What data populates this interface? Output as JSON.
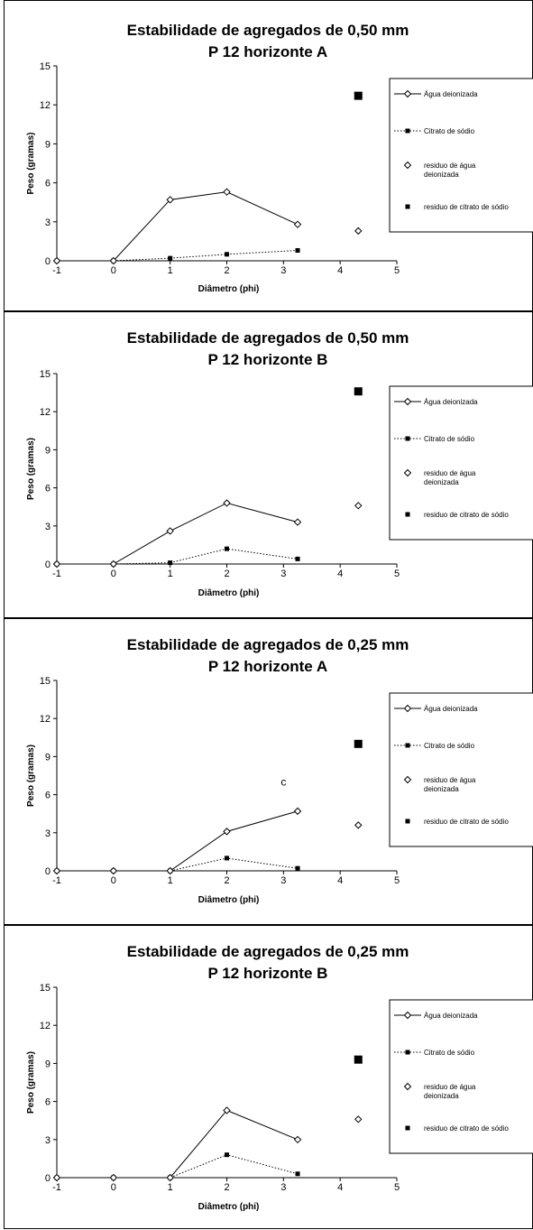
{
  "chart_data": [
    {
      "type": "line",
      "title": "Estabilidade de agregados de 0,50 mm",
      "subtitle": "P 12 horizonte A",
      "xlabel": "Diâmetro (phi)",
      "ylabel": "Peso (gramas)",
      "xlim": [
        -1,
        5
      ],
      "ylim": [
        0,
        15
      ],
      "xticks": [
        "-1",
        "0",
        "1",
        "2",
        "3",
        "4",
        "5"
      ],
      "yticks": [
        "0",
        "3",
        "6",
        "9",
        "12",
        "15"
      ],
      "grid": false,
      "legend_position": "right",
      "series": [
        {
          "name": "Água deionizada",
          "style": "solid-diamond",
          "points": [
            [
              -1,
              0
            ],
            [
              0,
              0
            ],
            [
              1,
              4.7
            ],
            [
              2,
              5.3
            ],
            [
              3.25,
              2.8
            ]
          ]
        },
        {
          "name": "Citrato de sódio",
          "style": "dotted-square",
          "points": [
            [
              -1,
              0
            ],
            [
              0,
              0
            ],
            [
              1,
              0.2
            ],
            [
              2,
              0.5
            ],
            [
              3.25,
              0.8
            ]
          ]
        },
        {
          "name": "residuo de água deionizada",
          "style": "diamond",
          "points": [
            [
              4.32,
              2.3
            ]
          ]
        },
        {
          "name": "residuo de citrato de sódio",
          "style": "square",
          "points": [
            [
              4.32,
              12.7
            ]
          ]
        }
      ],
      "annotations": []
    },
    {
      "type": "line",
      "title": "Estabilidade de agregados de 0,50 mm",
      "subtitle": "P 12 horizonte B",
      "xlabel": "Diâmetro (phi)",
      "ylabel": "Peso (gramas)",
      "xlim": [
        -1,
        5
      ],
      "ylim": [
        0,
        15
      ],
      "xticks": [
        "-1",
        "0",
        "1",
        "2",
        "3",
        "4",
        "5"
      ],
      "yticks": [
        "0",
        "3",
        "6",
        "9",
        "12",
        "15"
      ],
      "grid": false,
      "legend_position": "right",
      "series": [
        {
          "name": "Água deionizada",
          "style": "solid-diamond",
          "points": [
            [
              -1,
              0
            ],
            [
              0,
              0
            ],
            [
              1,
              2.6
            ],
            [
              2,
              4.8
            ],
            [
              3.25,
              3.3
            ]
          ]
        },
        {
          "name": "Citrato de sódio",
          "style": "dotted-square",
          "points": [
            [
              -1,
              0
            ],
            [
              0,
              0
            ],
            [
              1,
              0.1
            ],
            [
              2,
              1.2
            ],
            [
              3.25,
              0.4
            ]
          ]
        },
        {
          "name": "residuo de água deionizada",
          "style": "diamond",
          "points": [
            [
              4.32,
              4.6
            ]
          ]
        },
        {
          "name": "residuo de citrato de sódio",
          "style": "square",
          "points": [
            [
              4.32,
              13.6
            ]
          ]
        }
      ],
      "annotations": []
    },
    {
      "type": "line",
      "title": "Estabilidade de agregados de 0,25 mm",
      "subtitle": "P 12 horizonte A",
      "xlabel": "Diâmetro (phi)",
      "ylabel": "Peso (gramas)",
      "xlim": [
        -1,
        5
      ],
      "ylim": [
        0,
        15
      ],
      "xticks": [
        "-1",
        "0",
        "1",
        "2",
        "3",
        "4",
        "5"
      ],
      "yticks": [
        "0",
        "3",
        "6",
        "9",
        "12",
        "15"
      ],
      "grid": false,
      "legend_position": "right",
      "series": [
        {
          "name": "Água deionizada",
          "style": "solid-diamond",
          "points": [
            [
              -1,
              0
            ],
            [
              0,
              0
            ],
            [
              1,
              0
            ],
            [
              2,
              3.1
            ],
            [
              3.25,
              4.7
            ]
          ]
        },
        {
          "name": "Citrato de sódio",
          "style": "dotted-square",
          "points": [
            [
              -1,
              0
            ],
            [
              0,
              0
            ],
            [
              1,
              0
            ],
            [
              2,
              1.0
            ],
            [
              3.25,
              0.2
            ]
          ]
        },
        {
          "name": "residuo de água deionizada",
          "style": "diamond",
          "points": [
            [
              4.32,
              3.6
            ]
          ]
        },
        {
          "name": "residuo de citrato de sódio",
          "style": "square",
          "points": [
            [
              4.32,
              10.0
            ]
          ]
        }
      ],
      "annotations": [
        {
          "text": "c",
          "x": 3.0,
          "y": 7.0
        }
      ]
    },
    {
      "type": "line",
      "title": "Estabilidade de agregados de 0,25 mm",
      "subtitle": "P 12 horizonte B",
      "xlabel": "Diâmetro (phi)",
      "ylabel": "Peso (gramas)",
      "xlim": [
        -1,
        5
      ],
      "ylim": [
        0,
        15
      ],
      "xticks": [
        "-1",
        "0",
        "1",
        "2",
        "3",
        "4",
        "5"
      ],
      "yticks": [
        "0",
        "3",
        "6",
        "9",
        "12",
        "15"
      ],
      "grid": false,
      "legend_position": "right",
      "series": [
        {
          "name": "Água deionizada",
          "style": "solid-diamond",
          "points": [
            [
              -1,
              0
            ],
            [
              0,
              0
            ],
            [
              1,
              0
            ],
            [
              2,
              5.3
            ],
            [
              3.25,
              3.0
            ]
          ]
        },
        {
          "name": "Citrato de sódio",
          "style": "dotted-square",
          "points": [
            [
              -1,
              0
            ],
            [
              0,
              0
            ],
            [
              1,
              0
            ],
            [
              2,
              1.8
            ],
            [
              3.25,
              0.3
            ]
          ]
        },
        {
          "name": "residuo de água deionizada",
          "style": "diamond",
          "points": [
            [
              4.32,
              4.6
            ]
          ]
        },
        {
          "name": "residuo de citrato de sódio",
          "style": "square",
          "points": [
            [
              4.32,
              9.3
            ]
          ]
        }
      ],
      "annotations": []
    }
  ]
}
